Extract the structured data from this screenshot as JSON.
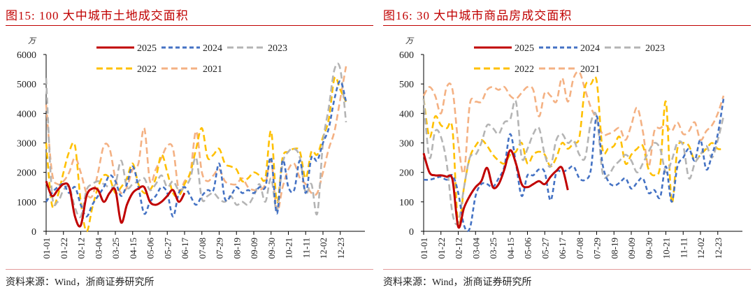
{
  "source": "资料来源：Wind，浙商证券研究所",
  "colors": {
    "2025": "#c00000",
    "2024": "#4472c4",
    "2023": "#b4b4b4",
    "2022": "#ffc000",
    "2021": "#f4b183",
    "title": "#c00000"
  },
  "chart_data": [
    {
      "type": "line",
      "title": "图15:   100 大中城市土地成交面积",
      "unit": "万",
      "ylim": [
        0,
        6000
      ],
      "yticks": [
        0,
        1000,
        2000,
        3000,
        4000,
        5000,
        6000
      ],
      "xtick_labels": [
        "01-01",
        "01-22",
        "02-12",
        "03-04",
        "03-25",
        "04-15",
        "05-06",
        "05-27",
        "06-17",
        "07-08",
        "07-29",
        "08-19",
        "09-09",
        "09-30",
        "10-21",
        "11-11",
        "12-02",
        "12-23"
      ],
      "x_frequency": "weekly",
      "legend_placement": "top",
      "series": [
        {
          "name": "2025",
          "style": "solid",
          "values": [
            1700,
            1200,
            1400,
            1600,
            1500,
            500,
            200,
            1200,
            1450,
            1400,
            1000,
            1300,
            1400,
            300,
            900,
            1300,
            1450,
            1500,
            1000,
            900,
            1000,
            1200,
            1400,
            1000,
            1300
          ]
        },
        {
          "name": "2024",
          "style": "dashed",
          "values": [
            1000,
            1300,
            1500,
            1600,
            1300,
            1500,
            900,
            500,
            900,
            1200,
            1500,
            1900,
            1700,
            1200,
            1600,
            2200,
            1500,
            600,
            1000,
            1200,
            1500,
            1300,
            500,
            1300,
            1500,
            1200,
            900,
            1200,
            1400,
            1400,
            2300,
            1100,
            1200,
            1500,
            1300,
            1400,
            1300,
            1500,
            1500,
            2500,
            600,
            2400,
            1500,
            1400,
            2400,
            1300,
            2500,
            2400,
            3000,
            3500,
            4500,
            5100,
            4400
          ]
        },
        {
          "name": "2023",
          "style": "dashed",
          "values": [
            5200,
            1300,
            1000,
            1400,
            1500,
            800,
            500,
            1400,
            1600,
            1700,
            1600,
            1500,
            1600,
            2400,
            1500,
            1600,
            1700,
            1800,
            1400,
            1600,
            1900,
            1500,
            1700,
            1400,
            1500,
            1800,
            2500,
            1100,
            1200,
            1300,
            1100,
            1000,
            1200,
            900,
            1000,
            900,
            1200,
            1600,
            1000,
            1800,
            700,
            2300,
            2700,
            2800,
            2500,
            1300,
            1600,
            600,
            3000,
            4200,
            5500,
            5500,
            3700
          ]
        },
        {
          "name": "2022",
          "style": "dashed",
          "values": [
            3000,
            900,
            1200,
            2000,
            2700,
            2900,
            1000,
            0,
            800,
            1500,
            1900,
            1800,
            1300,
            1500,
            1800,
            2300,
            1600,
            1300,
            1400,
            1800,
            2600,
            2000,
            1300,
            1200,
            1600,
            2000,
            2800,
            3500,
            2500,
            2600,
            2800,
            2300,
            2200,
            2100,
            1700,
            1800,
            2000,
            1900,
            1800,
            3400,
            1000,
            2500,
            2700,
            2800,
            2700,
            1800,
            2700,
            2600,
            3200,
            3800,
            5200,
            4800,
            4400
          ]
        },
        {
          "name": "2021",
          "style": "dashed",
          "values": [
            4300,
            2000,
            1600,
            1700,
            2000,
            2500,
            2000,
            1300,
            1200,
            2000,
            2900,
            2800,
            1800,
            1300,
            1500,
            2100,
            2300,
            3500,
            1700,
            2100,
            2500,
            2900,
            2800,
            1400,
            1700,
            2000,
            3400,
            2000,
            1700,
            1900,
            2100,
            1700,
            1600,
            1600,
            1800,
            1500,
            1400,
            1400,
            1600,
            2400,
            700,
            1500,
            2100,
            2300,
            1800,
            1600,
            1300,
            1300,
            2000,
            2800,
            3400,
            4500,
            5600
          ]
        }
      ]
    },
    {
      "type": "line",
      "title": "图16:   30 大中城市商品房成交面积",
      "unit": "万",
      "ylim": [
        0,
        600
      ],
      "yticks": [
        0,
        100,
        200,
        300,
        400,
        500,
        600
      ],
      "xtick_labels": [
        "01-01",
        "01-22",
        "02-12",
        "03-04",
        "03-25",
        "04-15",
        "05-06",
        "05-27",
        "06-17",
        "07-08",
        "07-29",
        "08-19",
        "09-09",
        "09-30",
        "10-21",
        "11-11",
        "12-02",
        "12-23"
      ],
      "x_frequency": "weekly",
      "legend_placement": "top",
      "series": [
        {
          "name": "2025",
          "style": "solid",
          "values": [
            265,
            200,
            190,
            190,
            185,
            175,
            15,
            80,
            120,
            150,
            170,
            215,
            150,
            160,
            210,
            275,
            230,
            160,
            150,
            160,
            170,
            160,
            185,
            205,
            215,
            140
          ]
        },
        {
          "name": "2024",
          "style": "dashed",
          "values": [
            175,
            175,
            180,
            185,
            175,
            190,
            130,
            20,
            10,
            120,
            160,
            160,
            150,
            180,
            220,
            330,
            230,
            120,
            190,
            190,
            210,
            200,
            105,
            200,
            200,
            210,
            220,
            180,
            175,
            210,
            390,
            230,
            170,
            155,
            165,
            180,
            145,
            165,
            180,
            130,
            140,
            115,
            220,
            100,
            220,
            250,
            280,
            240,
            310,
            210,
            260,
            330,
            450
          ]
        },
        {
          "name": "2023",
          "style": "dashed",
          "values": [
            450,
            250,
            340,
            320,
            230,
            60,
            30,
            150,
            250,
            260,
            300,
            360,
            350,
            330,
            370,
            380,
            440,
            250,
            280,
            330,
            350,
            260,
            220,
            310,
            330,
            300,
            310,
            260,
            250,
            370,
            390,
            200,
            190,
            220,
            240,
            260,
            240,
            200,
            230,
            270,
            300,
            280,
            200,
            240,
            300,
            290,
            180,
            230,
            260,
            290,
            250,
            310,
            390
          ]
        },
        {
          "name": "2022",
          "style": "dashed",
          "values": [
            450,
            320,
            390,
            360,
            350,
            345,
            20,
            150,
            250,
            290,
            310,
            290,
            260,
            240,
            230,
            260,
            270,
            300,
            230,
            260,
            270,
            260,
            220,
            250,
            300,
            280,
            300,
            320,
            490,
            500,
            510,
            280,
            280,
            290,
            320,
            230,
            260,
            280,
            290,
            210,
            190,
            220,
            440,
            100,
            280,
            300,
            290,
            240,
            260,
            280,
            300,
            280,
            280
          ]
        },
        {
          "name": "2021",
          "style": "dashed",
          "values": [
            460,
            490,
            460,
            400,
            490,
            480,
            300,
            200,
            430,
            440,
            440,
            480,
            490,
            480,
            490,
            460,
            450,
            470,
            490,
            480,
            390,
            470,
            460,
            440,
            520,
            440,
            520,
            540,
            480,
            420,
            380,
            330,
            330,
            340,
            350,
            310,
            360,
            420,
            340,
            220,
            340,
            350,
            360,
            340,
            370,
            330,
            340,
            370,
            310,
            340,
            360,
            400,
            460
          ]
        }
      ]
    }
  ]
}
